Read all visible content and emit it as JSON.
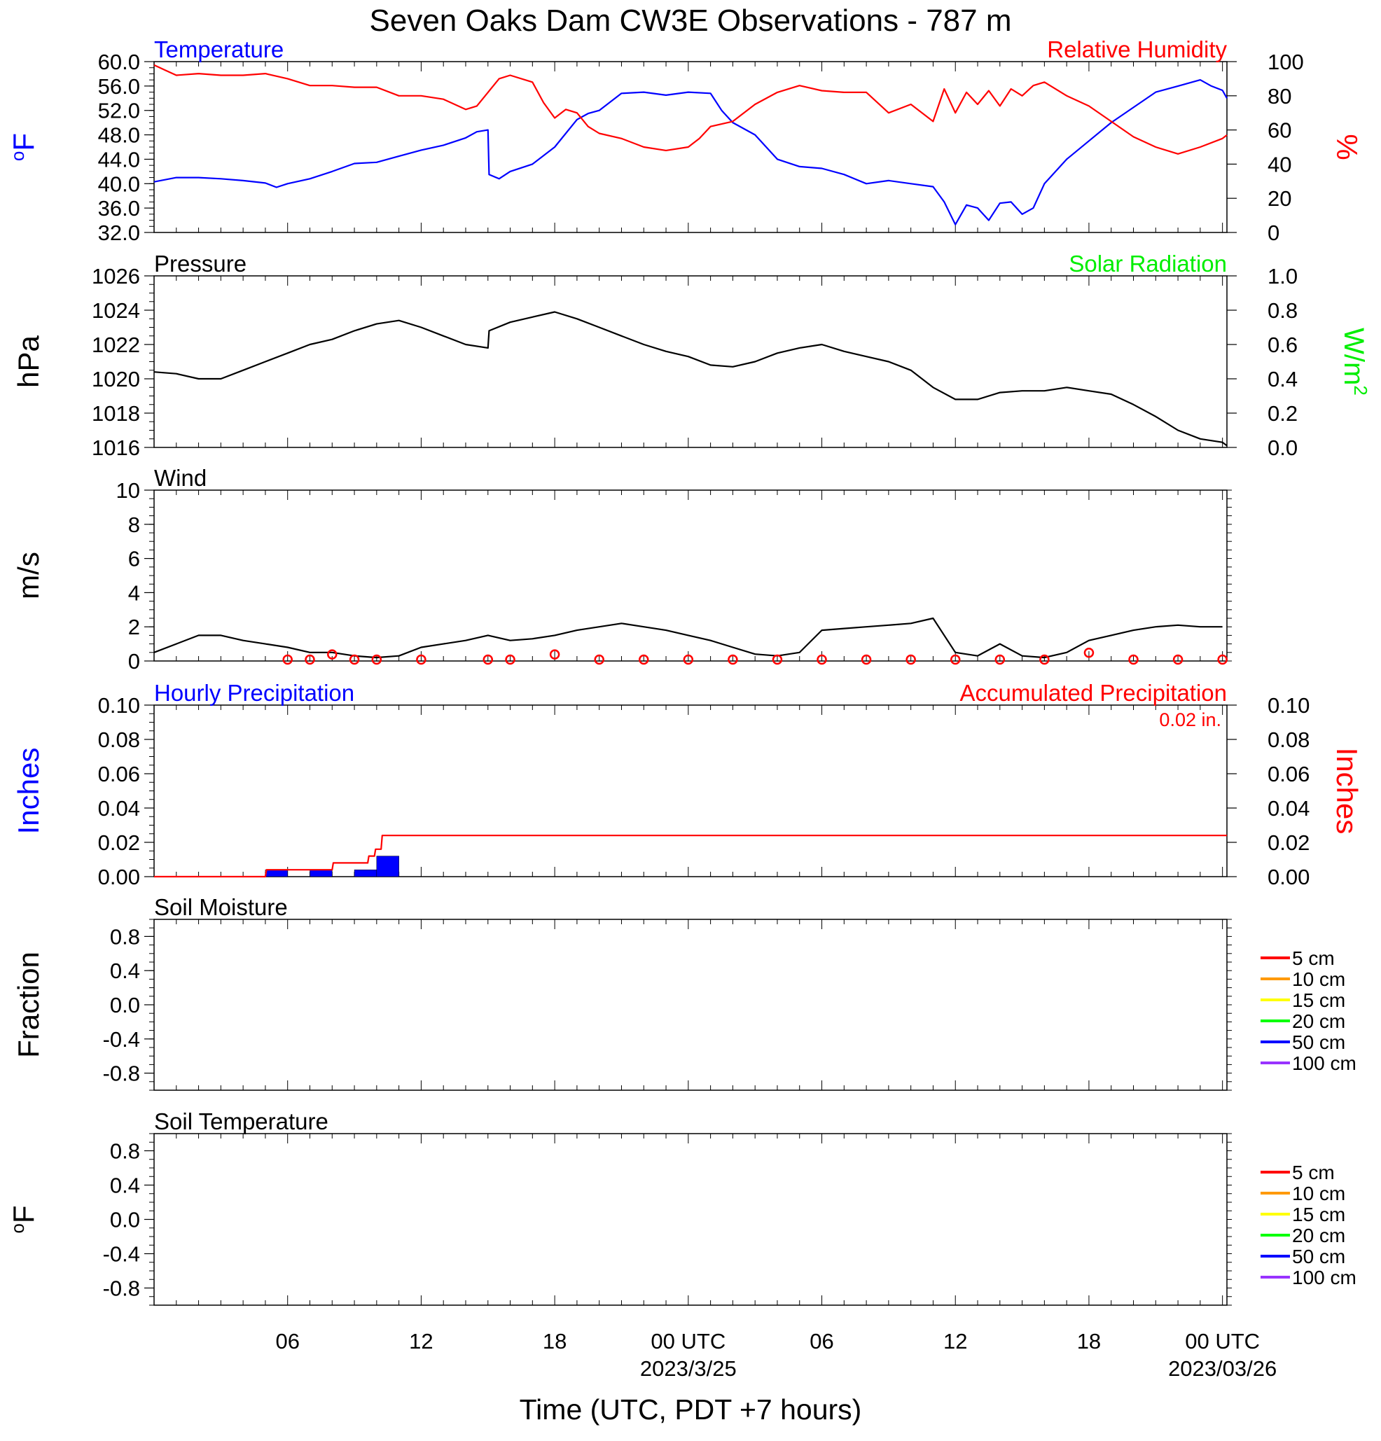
{
  "title": "Seven Oaks Dam CW3E Observations - 787 m",
  "xaxis": {
    "label": "Time (UTC, PDT +7 hours)",
    "ticks": [
      {
        "h": 6,
        "label": "06",
        "sub": ""
      },
      {
        "h": 12,
        "label": "12",
        "sub": ""
      },
      {
        "h": 18,
        "label": "18",
        "sub": ""
      },
      {
        "h": 24,
        "label": "00 UTC",
        "sub": "2023/3/25"
      },
      {
        "h": 30,
        "label": "06",
        "sub": ""
      },
      {
        "h": 36,
        "label": "12",
        "sub": ""
      },
      {
        "h": 42,
        "label": "18",
        "sub": ""
      },
      {
        "h": 48,
        "label": "00 UTC",
        "sub": "2023/03/26"
      }
    ]
  },
  "chart_data": [
    {
      "type": "line",
      "panel": "temperature_humidity",
      "title_left": "Temperature",
      "title_right": "Relative Humidity",
      "ylabel_left": "oF",
      "ylabel_right": "%",
      "ylim_left": [
        32,
        60
      ],
      "ylim_right": [
        0,
        100
      ],
      "yticks_left": [
        "32.0",
        "36.0",
        "40.0",
        "44.0",
        "48.0",
        "52.0",
        "56.0",
        "60.0"
      ],
      "yticks_right": [
        "0",
        "20",
        "40",
        "60",
        "80",
        "100"
      ],
      "xlim_hours": [
        0,
        48.2
      ],
      "series": [
        {
          "name": "Temperature",
          "axis": "left",
          "color": "#0000ff",
          "x": [
            0,
            1,
            2,
            3,
            4,
            5,
            5.5,
            6,
            7,
            8,
            9,
            10,
            11,
            12,
            13,
            14,
            14.5,
            15,
            15.05,
            15.5,
            16,
            17,
            18,
            19,
            19.5,
            20,
            21,
            22,
            23,
            24,
            25,
            25.5,
            26,
            27,
            28,
            29,
            30,
            31,
            32,
            33,
            34,
            35,
            35.5,
            36,
            36.5,
            37,
            37.5,
            38,
            38.5,
            39,
            39.5,
            40,
            41,
            42,
            43,
            44,
            45,
            46,
            47,
            47.5,
            48,
            48.2
          ],
          "y": [
            40.3,
            41,
            41,
            40.8,
            40.5,
            40.1,
            39.4,
            40,
            40.8,
            42,
            43.3,
            43.5,
            44.5,
            45.5,
            46.3,
            47.5,
            48.5,
            48.8,
            41.5,
            40.8,
            42,
            43.2,
            46,
            50.5,
            51.5,
            52,
            54.8,
            55,
            54.5,
            55,
            54.8,
            52,
            50,
            48,
            44,
            42.8,
            42.5,
            41.5,
            40,
            40.5,
            40,
            39.5,
            37,
            33.3,
            36.5,
            36,
            34,
            36.8,
            37,
            35,
            36,
            40,
            44,
            47,
            50,
            52.5,
            55,
            56,
            57,
            56,
            55.3,
            54
          ]
        },
        {
          "name": "Relative Humidity",
          "axis": "right",
          "color": "#ff0000",
          "x": [
            0,
            0.5,
            1,
            2,
            3,
            4,
            5,
            6,
            7,
            8,
            9,
            10,
            11,
            12,
            13,
            14,
            14.5,
            15,
            15.5,
            16,
            17,
            17.5,
            18,
            18.5,
            19,
            19.5,
            20,
            21,
            22,
            23,
            24,
            24.5,
            25,
            26,
            27,
            28,
            29,
            30,
            31,
            32,
            33,
            34,
            35,
            35.5,
            36,
            36.5,
            37,
            37.5,
            38,
            38.5,
            39,
            39.5,
            40,
            41,
            42,
            43,
            44,
            45,
            46,
            47,
            48,
            48.2
          ],
          "y": [
            98,
            95,
            92,
            93,
            92,
            92,
            93,
            90,
            86,
            86,
            85,
            85,
            80,
            80,
            78,
            72,
            74,
            82,
            90,
            92,
            88,
            76,
            67,
            72,
            70,
            62,
            58,
            55,
            50,
            48,
            50,
            55,
            62,
            65,
            75,
            82,
            86,
            83,
            82,
            82,
            70,
            75,
            65,
            84,
            70,
            82,
            75,
            83,
            74,
            84,
            80,
            86,
            88,
            80,
            74,
            65,
            56,
            50,
            46,
            50,
            55,
            57
          ]
        }
      ]
    },
    {
      "type": "line",
      "panel": "pressure_solar",
      "title_left": "Pressure",
      "title_right": "Solar Radiation",
      "ylabel_left": "hPa",
      "ylabel_right": "W/m2",
      "ylim_left": [
        1016,
        1026
      ],
      "ylim_right": [
        0,
        1
      ],
      "yticks_left": [
        "1016",
        "1018",
        "1020",
        "1022",
        "1024",
        "1026"
      ],
      "yticks_right": [
        "0.0",
        "0.2",
        "0.4",
        "0.6",
        "0.8",
        "1.0"
      ],
      "series": [
        {
          "name": "Pressure",
          "axis": "left",
          "color": "#000000",
          "x": [
            0,
            1,
            2,
            3,
            4,
            5,
            6,
            7,
            8,
            9,
            10,
            11,
            12,
            13,
            14,
            15,
            15.05,
            16,
            17,
            18,
            19,
            20,
            21,
            22,
            23,
            24,
            25,
            26,
            27,
            28,
            29,
            30,
            31,
            32,
            33,
            34,
            35,
            36,
            37,
            38,
            39,
            40,
            41,
            42,
            43,
            44,
            45,
            46,
            47,
            48,
            48.2
          ],
          "y": [
            1020.4,
            1020.3,
            1020,
            1020,
            1020.5,
            1021,
            1021.5,
            1022,
            1022.3,
            1022.8,
            1023.2,
            1023.4,
            1023,
            1022.5,
            1022,
            1021.8,
            1022.8,
            1023.3,
            1023.6,
            1023.9,
            1023.5,
            1023,
            1022.5,
            1022,
            1021.6,
            1021.3,
            1020.8,
            1020.7,
            1021,
            1021.5,
            1021.8,
            1022,
            1021.6,
            1021.3,
            1021,
            1020.5,
            1019.5,
            1018.8,
            1018.8,
            1019.2,
            1019.3,
            1019.3,
            1019.5,
            1019.3,
            1019.1,
            1018.5,
            1017.8,
            1017,
            1016.5,
            1016.3,
            1016.1
          ]
        }
      ]
    },
    {
      "type": "line",
      "panel": "wind",
      "title_left": "Wind",
      "ylabel_left": "m/s",
      "ylim_left": [
        0,
        10
      ],
      "yticks_left": [
        "0",
        "2",
        "4",
        "6",
        "8",
        "10"
      ],
      "series": [
        {
          "name": "Wind speed",
          "axis": "left",
          "color": "#000000",
          "x": [
            0,
            1,
            2,
            3,
            4,
            5,
            6,
            7,
            8,
            9,
            10,
            11,
            12,
            13,
            14,
            15,
            16,
            17,
            18,
            19,
            20,
            21,
            22,
            23,
            24,
            25,
            26,
            27,
            28,
            29,
            30,
            31,
            32,
            33,
            34,
            35,
            36,
            37,
            38,
            39,
            40,
            41,
            42,
            43,
            44,
            45,
            46,
            47,
            48
          ],
          "y": [
            0.5,
            1,
            1.5,
            1.5,
            1.2,
            1,
            0.8,
            0.5,
            0.5,
            0.3,
            0.2,
            0.3,
            0.8,
            1,
            1.2,
            1.5,
            1.2,
            1.3,
            1.5,
            1.8,
            2,
            2.2,
            2,
            1.8,
            1.5,
            1.2,
            0.8,
            0.4,
            0.3,
            0.5,
            1.8,
            1.9,
            2,
            2.1,
            2.2,
            2.5,
            0.5,
            0.3,
            1,
            0.3,
            0.2,
            0.5,
            1.2,
            1.5,
            1.8,
            2,
            2.1,
            2,
            2
          ]
        },
        {
          "name": "Calm / wind barb locations",
          "axis": "left",
          "color": "#ff0000",
          "x": [
            6,
            7,
            8,
            9,
            10,
            12,
            15,
            16,
            18,
            20,
            22,
            24,
            26,
            28,
            30,
            32,
            34,
            36,
            38,
            40,
            42,
            44,
            46,
            48
          ],
          "y": [
            0,
            0,
            0.3,
            0,
            0,
            0,
            0,
            0,
            0.3,
            0,
            0,
            0,
            0,
            0,
            0,
            0,
            0,
            0,
            0,
            0,
            0.4,
            0,
            0,
            0
          ]
        }
      ]
    },
    {
      "type": "bar",
      "panel": "precipitation",
      "title_left": "Hourly Precipitation",
      "title_right": "Accumulated Precipitation",
      "annotation": "0.02 in.",
      "ylabel_left": "Inches",
      "ylabel_right": "Inches",
      "ylim_left": [
        0,
        0.1
      ],
      "ylim_right": [
        0,
        0.1
      ],
      "yticks_left": [
        "0.00",
        "0.02",
        "0.04",
        "0.06",
        "0.08",
        "0.10"
      ],
      "yticks_right": [
        "0.00",
        "0.02",
        "0.04",
        "0.06",
        "0.08",
        "0.10"
      ],
      "series": [
        {
          "name": "Hourly Precipitation",
          "axis": "left",
          "color": "#0000ff",
          "x": [
            5.5,
            7.5,
            9.5,
            10.5
          ],
          "values": [
            0.004,
            0.004,
            0.004,
            0.012
          ]
        },
        {
          "name": "Accumulated Precipitation",
          "axis": "right",
          "color": "#ff0000",
          "x": [
            0,
            5,
            5.05,
            7,
            7.05,
            8,
            8.05,
            9,
            9.05,
            9.6,
            9.65,
            9.9,
            9.95,
            10.2,
            10.25,
            48.2
          ],
          "y": [
            0,
            0,
            0.004,
            0.004,
            0.004,
            0.004,
            0.008,
            0.008,
            0.008,
            0.008,
            0.012,
            0.012,
            0.016,
            0.016,
            0.024,
            0.024
          ]
        }
      ]
    },
    {
      "type": "line",
      "panel": "soil_moisture",
      "title_left": "Soil Moisture",
      "ylabel_left": "Fraction",
      "ylim_left": [
        -1,
        1
      ],
      "yticks_left": [
        "-0.8",
        "-0.4",
        "0.0",
        "0.4",
        "0.8"
      ],
      "legend": [
        {
          "label": "5 cm",
          "color": "#ff0000"
        },
        {
          "label": "10 cm",
          "color": "#ff9900"
        },
        {
          "label": "15 cm",
          "color": "#ffff00"
        },
        {
          "label": "20 cm",
          "color": "#00ff00"
        },
        {
          "label": "50 cm",
          "color": "#0000ff"
        },
        {
          "label": "100 cm",
          "color": "#9933ff"
        }
      ],
      "series": []
    },
    {
      "type": "line",
      "panel": "soil_temperature",
      "title_left": "Soil Temperature",
      "ylabel_left": "oF",
      "ylim_left": [
        -1,
        1
      ],
      "yticks_left": [
        "-0.8",
        "-0.4",
        "0.0",
        "0.4",
        "0.8"
      ],
      "legend": [
        {
          "label": "5 cm",
          "color": "#ff0000"
        },
        {
          "label": "10 cm",
          "color": "#ff9900"
        },
        {
          "label": "15 cm",
          "color": "#ffff00"
        },
        {
          "label": "20 cm",
          "color": "#00ff00"
        },
        {
          "label": "50 cm",
          "color": "#0000ff"
        },
        {
          "label": "100 cm",
          "color": "#9933ff"
        }
      ],
      "series": []
    }
  ]
}
